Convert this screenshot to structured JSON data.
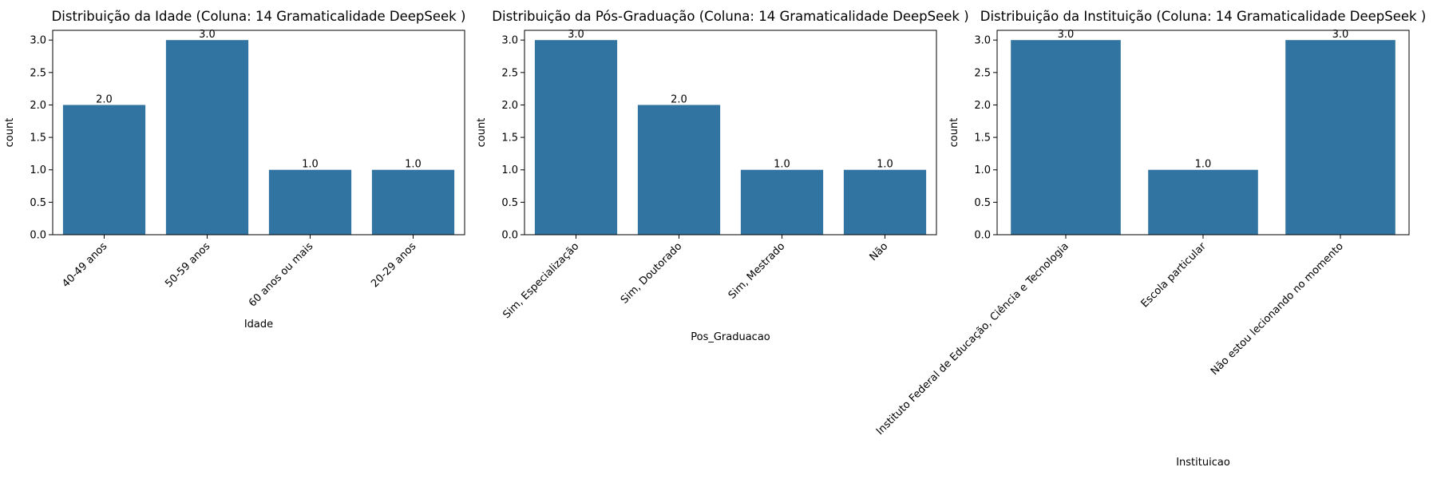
{
  "chart_data": [
    {
      "type": "bar",
      "title": "Distribuição da Idade (Coluna: 14 Gramaticalidade DeepSeek )",
      "xlabel": "Idade",
      "ylabel": "count",
      "categories": [
        "40-49 anos",
        "50-59 anos",
        "60 anos ou mais",
        "20-29 anos"
      ],
      "values": [
        2,
        3,
        1,
        1
      ],
      "value_labels": [
        "2.0",
        "3.0",
        "1.0",
        "1.0"
      ],
      "yticks": [
        "0.0",
        "0.5",
        "1.0",
        "1.5",
        "2.0",
        "2.5",
        "3.0"
      ],
      "ylim": [
        0,
        3.15
      ],
      "color": "#3274a1",
      "grid": false,
      "xtick_rotation": 45
    },
    {
      "type": "bar",
      "title": "Distribuição da Pós-Graduação (Coluna: 14 Gramaticalidade DeepSeek )",
      "xlabel": "Pos_Graduacao",
      "ylabel": "count",
      "categories": [
        "Sim, Especialização",
        "Sim, Doutorado",
        "Sim, Mestrado",
        "Não"
      ],
      "values": [
        3,
        2,
        1,
        1
      ],
      "value_labels": [
        "3.0",
        "2.0",
        "1.0",
        "1.0"
      ],
      "yticks": [
        "0.0",
        "0.5",
        "1.0",
        "1.5",
        "2.0",
        "2.5",
        "3.0"
      ],
      "ylim": [
        0,
        3.15
      ],
      "color": "#3274a1",
      "grid": false,
      "xtick_rotation": 45
    },
    {
      "type": "bar",
      "title": "Distribuição da Instituição (Coluna: 14 Gramaticalidade DeepSeek )",
      "xlabel": "Instituicao",
      "ylabel": "count",
      "categories": [
        "Instituto Federal de Educação, Ciência e Tecnologia",
        "Escola particular",
        "Não estou lecionando no momento"
      ],
      "values": [
        3,
        1,
        3
      ],
      "value_labels": [
        "3.0",
        "1.0",
        "3.0"
      ],
      "yticks": [
        "0.0",
        "0.5",
        "1.0",
        "1.5",
        "2.0",
        "2.5",
        "3.0"
      ],
      "ylim": [
        0,
        3.15
      ],
      "color": "#3274a1",
      "grid": false,
      "xtick_rotation": 45
    }
  ]
}
